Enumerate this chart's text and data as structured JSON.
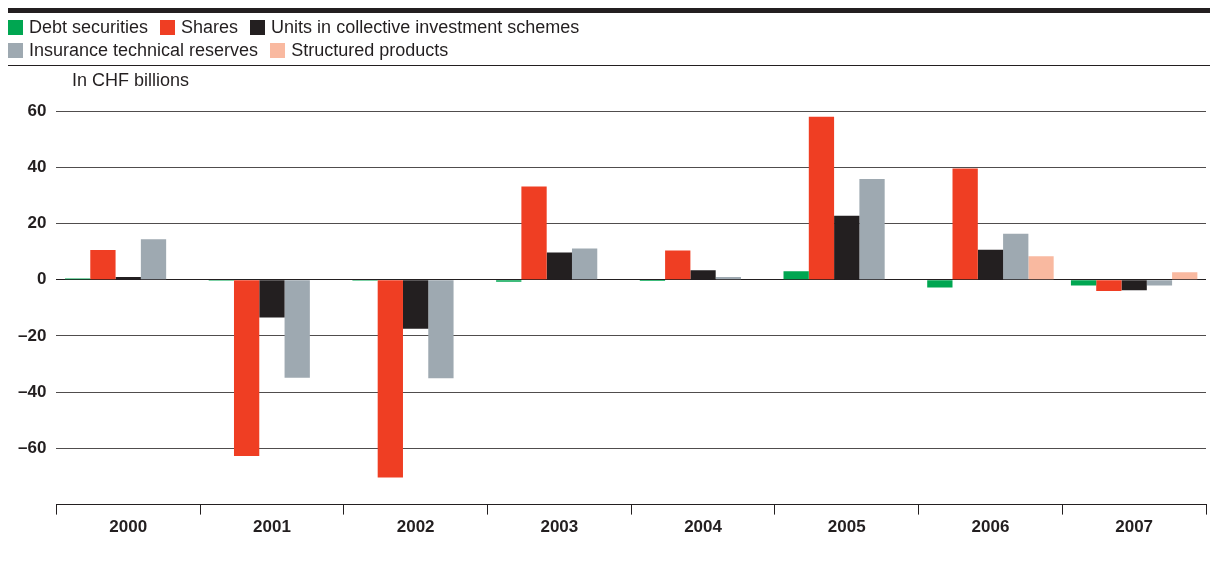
{
  "chart_data": {
    "type": "bar",
    "ylabel": "In CHF billions",
    "categories": [
      "2000",
      "2001",
      "2002",
      "2003",
      "2004",
      "2005",
      "2006",
      "2007"
    ],
    "series": [
      {
        "name": "Debt securities",
        "color": "#00a651",
        "values": [
          0.5,
          -0.3,
          -0.3,
          -0.7,
          -0.4,
          3,
          -2.7,
          -2
        ]
      },
      {
        "name": "Shares",
        "color": "#ef3e23",
        "values": [
          10.6,
          -62.7,
          -70.4,
          33.2,
          10.4,
          58,
          39.6,
          -4
        ]
      },
      {
        "name": "Units in collective investment schemes",
        "color": "#231f20",
        "values": [
          1,
          -13.4,
          -17.4,
          9.7,
          3.4,
          22.8,
          10.7,
          -3.7
        ]
      },
      {
        "name": "Insurance technical reserves",
        "color": "#9ea9b1",
        "values": [
          14.4,
          -34.9,
          -35,
          11.1,
          1,
          35.9,
          16.4,
          -2
        ]
      },
      {
        "name": "Structured products",
        "color": "#f9b9a0",
        "values": [
          null,
          null,
          null,
          null,
          null,
          null,
          8.4,
          2.7
        ]
      }
    ],
    "ylim": [
      -80,
      60
    ],
    "yticks": [
      {
        "value": -60,
        "label": "–60"
      },
      {
        "value": -40,
        "label": "–40"
      },
      {
        "value": -20,
        "label": "–20"
      },
      0,
      20,
      40,
      60
    ],
    "grid": "y",
    "legend": "top left"
  }
}
